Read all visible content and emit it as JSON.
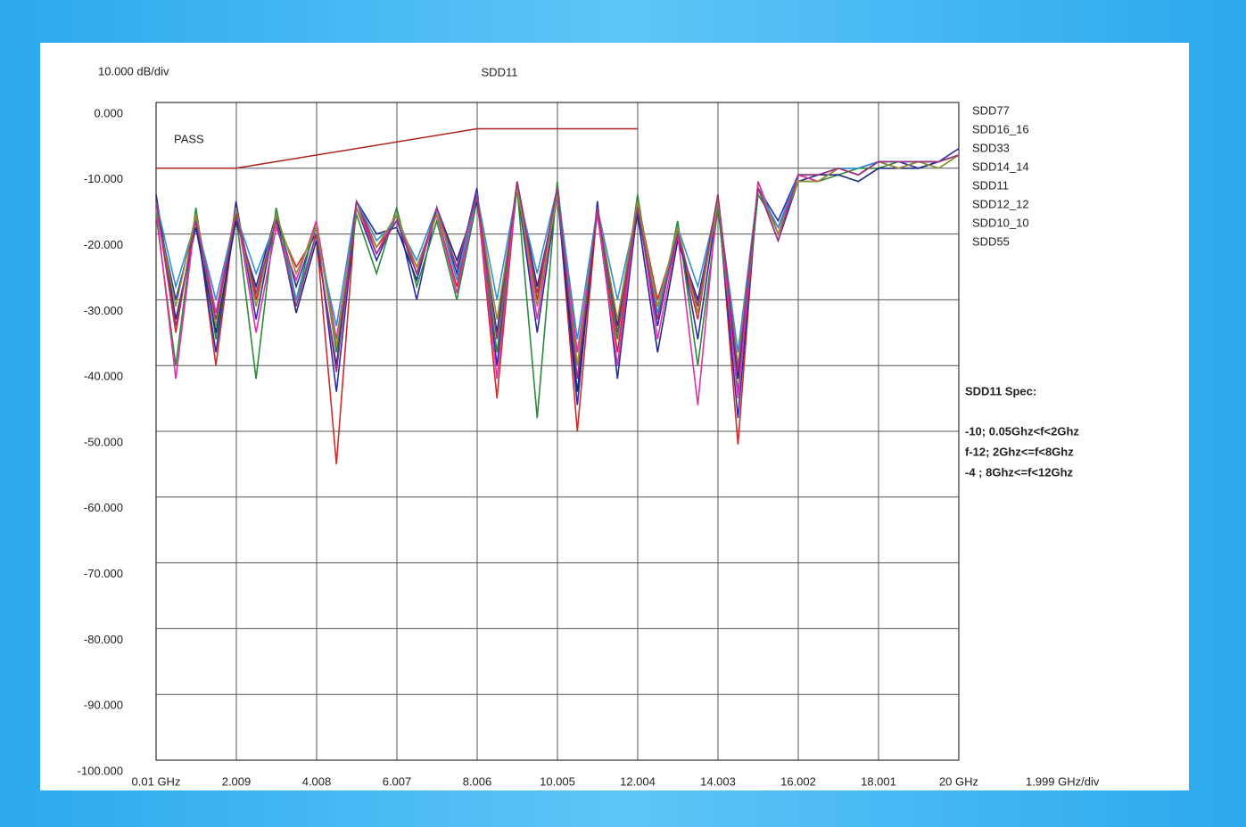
{
  "chart_data": {
    "type": "line",
    "title": "SDD11",
    "y_unit_label": "10.000 dB/div",
    "x_unit_label": "1.999 GHz/div",
    "status": "PASS",
    "spec_title": "SDD11 Spec:",
    "spec_lines": [
      "-10;  0.05Ghz<f<2Ghz",
      "f-12; 2Ghz<=f<8Ghz",
      "-4 ; 8Ghz<=f<12Ghz"
    ],
    "spec_line": {
      "color": "#b02020",
      "x": [
        0.01,
        2,
        8,
        12
      ],
      "values": [
        -10,
        -10,
        -4,
        -4
      ]
    },
    "grid": true,
    "xlim": [
      0.01,
      20
    ],
    "ylim": [
      -100,
      0
    ],
    "xticks": [
      {
        "value": 0.01,
        "label": "0.01 GHz"
      },
      2.009,
      4.008,
      6.007,
      8.006,
      10.005,
      12.004,
      14.003,
      16.002,
      18.001,
      {
        "value": 20,
        "label": "20 GHz"
      }
    ],
    "yticks": [
      {
        "value": 0,
        "label": "0.000"
      },
      {
        "value": -10,
        "label": "-10.000"
      },
      {
        "value": -20,
        "label": "-20.000"
      },
      {
        "value": -30,
        "label": "-30.000"
      },
      {
        "value": -40,
        "label": "-40.000"
      },
      {
        "value": -50,
        "label": "-50.000"
      },
      {
        "value": -60,
        "label": "-60.000"
      },
      {
        "value": -70,
        "label": "-70.000"
      },
      {
        "value": -80,
        "label": "-80.000"
      },
      {
        "value": -90,
        "label": "-90.000"
      },
      {
        "value": -100,
        "label": "-100.000"
      }
    ],
    "x": [
      0.01,
      0.5,
      1,
      1.5,
      2,
      2.5,
      3,
      3.5,
      4,
      4.5,
      5,
      5.5,
      6,
      6.5,
      7,
      7.5,
      8,
      8.5,
      9,
      9.5,
      10,
      10.5,
      11,
      11.5,
      12,
      12.5,
      13,
      13.5,
      14,
      14.5,
      15,
      15.5,
      16,
      16.5,
      17,
      17.5,
      18,
      18.5,
      19,
      19.5,
      20
    ],
    "series": [
      {
        "name": "SDD77",
        "color": "#d02a2a",
        "values": [
          -15,
          -35,
          -17,
          -40,
          -16,
          -30,
          -18,
          -25,
          -20,
          -55,
          -15,
          -22,
          -18,
          -25,
          -17,
          -28,
          -14,
          -45,
          -12,
          -30,
          -13,
          -50,
          -16,
          -38,
          -15,
          -30,
          -20,
          -33,
          -14,
          -52,
          -12,
          -20,
          -11,
          -12,
          -10,
          -11,
          -9,
          -10,
          -9,
          -9,
          -8
        ]
      },
      {
        "name": "SDD16_16",
        "color": "#2c2ca8",
        "values": [
          -16,
          -30,
          -18,
          -38,
          -15,
          -33,
          -17,
          -28,
          -19,
          -44,
          -16,
          -24,
          -17,
          -30,
          -16,
          -26,
          -13,
          -40,
          -13,
          -35,
          -14,
          -46,
          -15,
          -42,
          -16,
          -34,
          -19,
          -36,
          -15,
          -48,
          -13,
          -18,
          -11,
          -11,
          -10,
          -10,
          -9,
          -9,
          -10,
          -9,
          -7
        ]
      },
      {
        "name": "SDD33",
        "color": "#2a8a3a",
        "values": [
          -17,
          -40,
          -16,
          -36,
          -17,
          -42,
          -16,
          -30,
          -18,
          -38,
          -17,
          -26,
          -16,
          -28,
          -18,
          -30,
          -15,
          -38,
          -13,
          -48,
          -12,
          -40,
          -17,
          -36,
          -14,
          -33,
          -18,
          -40,
          -16,
          -44,
          -14,
          -19,
          -12,
          -12,
          -11,
          -10,
          -10,
          -9,
          -9,
          -10,
          -8
        ]
      },
      {
        "name": "SDD14_14",
        "color": "#1c2a80",
        "values": [
          -14,
          -33,
          -19,
          -35,
          -18,
          -28,
          -17,
          -32,
          -21,
          -40,
          -15,
          -20,
          -19,
          -27,
          -16,
          -24,
          -15,
          -35,
          -12,
          -28,
          -14,
          -44,
          -16,
          -34,
          -17,
          -38,
          -21,
          -30,
          -15,
          -42,
          -13,
          -21,
          -12,
          -11,
          -11,
          -12,
          -10,
          -10,
          -10,
          -9,
          -8
        ]
      },
      {
        "name": "SDD11",
        "color": "#e030a8",
        "values": [
          -16,
          -42,
          -17,
          -32,
          -16,
          -35,
          -19,
          -27,
          -18,
          -36,
          -16,
          -23,
          -17,
          -26,
          -17,
          -29,
          -14,
          -42,
          -12,
          -33,
          -13,
          -38,
          -17,
          -40,
          -15,
          -36,
          -20,
          -46,
          -14,
          -45,
          -12,
          -20,
          -11,
          -12,
          -10,
          -11,
          -9,
          -10,
          -9,
          -9,
          -8
        ]
      },
      {
        "name": "SDD12_12",
        "color": "#3090d0",
        "values": [
          -15,
          -28,
          -18,
          -30,
          -17,
          -26,
          -18,
          -30,
          -20,
          -34,
          -15,
          -21,
          -18,
          -24,
          -16,
          -27,
          -14,
          -30,
          -13,
          -26,
          -13,
          -36,
          -16,
          -30,
          -16,
          -32,
          -19,
          -28,
          -15,
          -38,
          -13,
          -19,
          -11,
          -11,
          -10,
          -10,
          -9,
          -9,
          -9,
          -9,
          -8
        ]
      },
      {
        "name": "SDD10_10",
        "color": "#909030",
        "values": [
          -16,
          -31,
          -17,
          -34,
          -16,
          -31,
          -17,
          -26,
          -19,
          -37,
          -16,
          -22,
          -17,
          -25,
          -17,
          -25,
          -14,
          -33,
          -13,
          -31,
          -14,
          -40,
          -16,
          -33,
          -15,
          -31,
          -19,
          -32,
          -15,
          -40,
          -13,
          -20,
          -12,
          -12,
          -10,
          -11,
          -9,
          -10,
          -9,
          -10,
          -8
        ]
      },
      {
        "name": "SDD55",
        "color": "#a03080",
        "values": [
          -15,
          -34,
          -18,
          -33,
          -17,
          -29,
          -18,
          -31,
          -20,
          -41,
          -15,
          -23,
          -18,
          -26,
          -16,
          -25,
          -14,
          -36,
          -12,
          -29,
          -13,
          -42,
          -16,
          -35,
          -16,
          -33,
          -20,
          -31,
          -14,
          -41,
          -13,
          -21,
          -11,
          -11,
          -10,
          -11,
          -9,
          -9,
          -9,
          -9,
          -8
        ]
      }
    ]
  }
}
